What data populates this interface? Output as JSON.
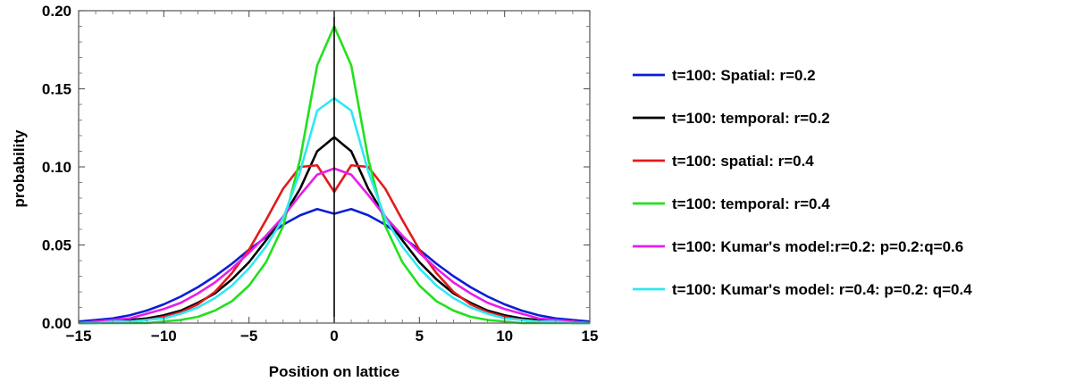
{
  "chart_data": {
    "type": "line",
    "xlabel": "Position on lattice",
    "ylabel": "probability",
    "xlim": [
      -15,
      15
    ],
    "ylim": [
      0,
      0.2
    ],
    "x_ticks": [
      -15,
      -10,
      -5,
      0,
      5,
      10,
      15
    ],
    "x_tick_labels": [
      "−15",
      "−10",
      "−5",
      "0",
      "5",
      "10",
      "15"
    ],
    "y_ticks": [
      0,
      0.05,
      0.1,
      0.15,
      0.2
    ],
    "y_tick_labels": [
      "0.00",
      "0.05",
      "0.10",
      "0.15",
      "0.20"
    ],
    "grid": false,
    "legend_position": "right",
    "x": [
      -15,
      -14,
      -13,
      -12,
      -11,
      -10,
      -9,
      -8,
      -7,
      -6,
      -5,
      -4,
      -3,
      -2,
      -1,
      0,
      1,
      2,
      3,
      4,
      5,
      6,
      7,
      8,
      9,
      10,
      11,
      12,
      13,
      14,
      15
    ],
    "series": [
      {
        "name": "t=100: Spatial: r=0.2",
        "color": "#0a1ed6",
        "values": [
          0.001,
          0.002,
          0.003,
          0.005,
          0.008,
          0.012,
          0.017,
          0.023,
          0.03,
          0.038,
          0.047,
          0.055,
          0.063,
          0.069,
          0.073,
          0.07,
          0.073,
          0.069,
          0.063,
          0.055,
          0.047,
          0.038,
          0.03,
          0.023,
          0.017,
          0.012,
          0.008,
          0.005,
          0.003,
          0.002,
          0.001
        ]
      },
      {
        "name": "t=100: temporal: r=0.2",
        "color": "#000000",
        "values": [
          0.0,
          0.0,
          0.001,
          0.002,
          0.003,
          0.005,
          0.008,
          0.013,
          0.019,
          0.028,
          0.039,
          0.053,
          0.068,
          0.086,
          0.11,
          0.119,
          0.11,
          0.086,
          0.068,
          0.053,
          0.039,
          0.028,
          0.019,
          0.013,
          0.008,
          0.005,
          0.003,
          0.002,
          0.001,
          0.0,
          0.0
        ]
      },
      {
        "name": "t=100: spatial: r=0.4",
        "color": "#e31a1c",
        "values": [
          0.0,
          0.0,
          0.001,
          0.001,
          0.002,
          0.004,
          0.007,
          0.012,
          0.02,
          0.032,
          0.047,
          0.066,
          0.086,
          0.1,
          0.101,
          0.084,
          0.101,
          0.1,
          0.086,
          0.066,
          0.047,
          0.032,
          0.02,
          0.012,
          0.007,
          0.004,
          0.002,
          0.001,
          0.001,
          0.0,
          0.0
        ]
      },
      {
        "name": "t=100: temporal: r=0.4",
        "color": "#22e01e",
        "values": [
          0.0,
          0.0,
          0.0,
          0.0,
          0.0,
          0.001,
          0.002,
          0.004,
          0.008,
          0.014,
          0.024,
          0.039,
          0.062,
          0.105,
          0.165,
          0.19,
          0.165,
          0.105,
          0.062,
          0.039,
          0.024,
          0.014,
          0.008,
          0.004,
          0.002,
          0.001,
          0.0,
          0.0,
          0.0,
          0.0,
          0.0
        ]
      },
      {
        "name": "t=100: Kumar's model:r=0.2: p=0.2:q=0.6",
        "color": "#e81ee8",
        "values": [
          0.0,
          0.001,
          0.002,
          0.003,
          0.006,
          0.009,
          0.013,
          0.019,
          0.026,
          0.035,
          0.045,
          0.056,
          0.068,
          0.082,
          0.095,
          0.099,
          0.095,
          0.082,
          0.068,
          0.056,
          0.045,
          0.035,
          0.026,
          0.019,
          0.013,
          0.009,
          0.006,
          0.003,
          0.002,
          0.001,
          0.0
        ]
      },
      {
        "name": "t=100: Kumar's model: r=0.4: p=0.2: q=0.4",
        "color": "#2ee8f2",
        "values": [
          0.0,
          0.0,
          0.001,
          0.001,
          0.002,
          0.003,
          0.006,
          0.01,
          0.016,
          0.024,
          0.035,
          0.049,
          0.067,
          0.097,
          0.136,
          0.144,
          0.136,
          0.097,
          0.067,
          0.049,
          0.035,
          0.024,
          0.016,
          0.01,
          0.006,
          0.003,
          0.002,
          0.001,
          0.001,
          0.0,
          0.0
        ]
      }
    ]
  }
}
